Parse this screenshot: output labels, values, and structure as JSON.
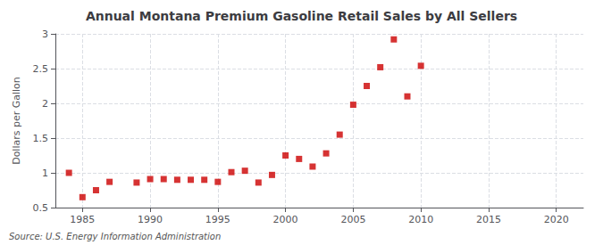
{
  "chart_data": {
    "type": "scatter",
    "title": "Annual Montana Premium Gasoline Retail Sales by All Sellers",
    "ylabel": "Dollars per Gallon",
    "source": "Source: U.S. Energy Information Administration",
    "x": [
      1984,
      1985,
      1986,
      1987,
      1989,
      1990,
      1991,
      1992,
      1993,
      1994,
      1995,
      1996,
      1997,
      1998,
      1999,
      2000,
      2001,
      2002,
      2003,
      2004,
      2005,
      2006,
      2007,
      2008,
      2009,
      2010
    ],
    "values": [
      1.0,
      0.65,
      0.75,
      0.87,
      0.86,
      0.91,
      0.91,
      0.9,
      0.9,
      0.9,
      0.87,
      1.01,
      1.03,
      0.86,
      0.97,
      1.25,
      1.2,
      1.09,
      1.28,
      1.55,
      1.98,
      2.25,
      2.52,
      2.92,
      2.1,
      2.54
    ],
    "color": "#cc0000",
    "marker": "square",
    "xlim": [
      1983,
      2022
    ],
    "ylim": [
      0.5,
      3.0
    ],
    "xticks": [
      1985,
      1990,
      1995,
      2000,
      2005,
      2010,
      2015,
      2020
    ],
    "yticks": [
      0.5,
      1.0,
      1.5,
      2.0,
      2.5,
      3.0
    ],
    "grid": true
  }
}
